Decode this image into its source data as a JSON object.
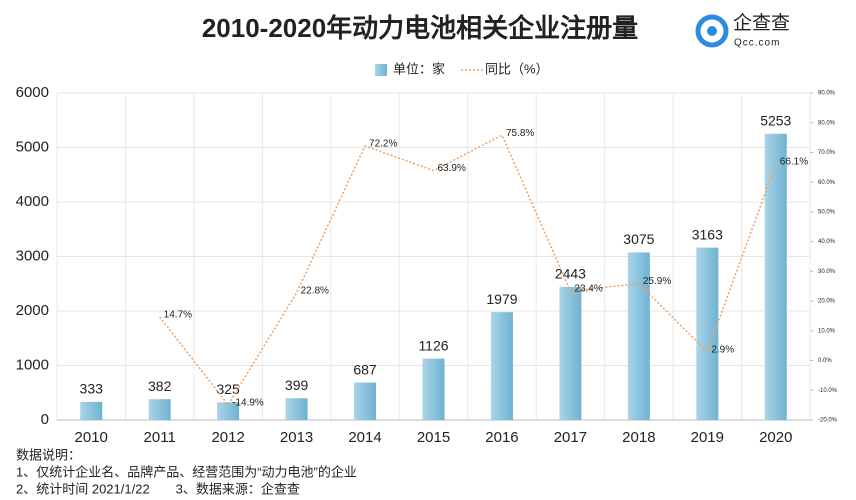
{
  "chart_data": {
    "type": "bar",
    "title": "2010-2020年动力电池相关企业注册量",
    "categories": [
      "2010",
      "2011",
      "2012",
      "2013",
      "2014",
      "2015",
      "2016",
      "2017",
      "2018",
      "2019",
      "2020"
    ],
    "series": [
      {
        "name": "单位：家",
        "type": "bar",
        "color": "#8cc3dc",
        "values": [
          333,
          382,
          325,
          399,
          687,
          1126,
          1979,
          2443,
          3075,
          3163,
          5253
        ]
      },
      {
        "name": "同比（%）",
        "type": "line",
        "axis": "y2",
        "color": "#f0a060",
        "values": [
          null,
          14.7,
          -14.9,
          22.8,
          72.2,
          63.9,
          75.8,
          23.4,
          25.9,
          2.9,
          66.1
        ],
        "value_labels": [
          null,
          "14.7%",
          "-14.9%",
          "22.8%",
          "72.2%",
          "63.9%",
          "75.8%",
          "23.4%",
          "25.9%",
          "2.9%",
          "66.1%"
        ]
      }
    ],
    "ylim": [
      0,
      6000
    ],
    "yticks": [
      0,
      1000,
      2000,
      3000,
      4000,
      5000,
      6000
    ],
    "y2lim": [
      -20,
      90
    ],
    "y2ticks": [
      {
        "value": 90,
        "label": "90.0%"
      },
      {
        "value": 80,
        "label": "80.0%"
      },
      {
        "value": 70,
        "label": "70.0%"
      },
      {
        "value": 60,
        "label": "60.0%"
      },
      {
        "value": 50,
        "label": "50.0%"
      },
      {
        "value": 40,
        "label": "40.0%"
      },
      {
        "value": 30,
        "label": "30.0%"
      },
      {
        "value": 20,
        "label": "20.0%"
      },
      {
        "value": 10,
        "label": "10.0%"
      },
      {
        "value": 0,
        "label": "0.0%"
      },
      {
        "value": -10,
        "label": "-10.0%"
      },
      {
        "value": -20,
        "label": "-20.0%"
      }
    ],
    "grid": true
  },
  "logo": {
    "name": "企查查",
    "domain": "Qcc.com"
  },
  "notes": [
    "数据说明：",
    "1、仅统计企业名、品牌产品、经营范围为“动力电池”的企业",
    "2、统计时间 2021/1/22　　3、数据来源：企查查"
  ]
}
